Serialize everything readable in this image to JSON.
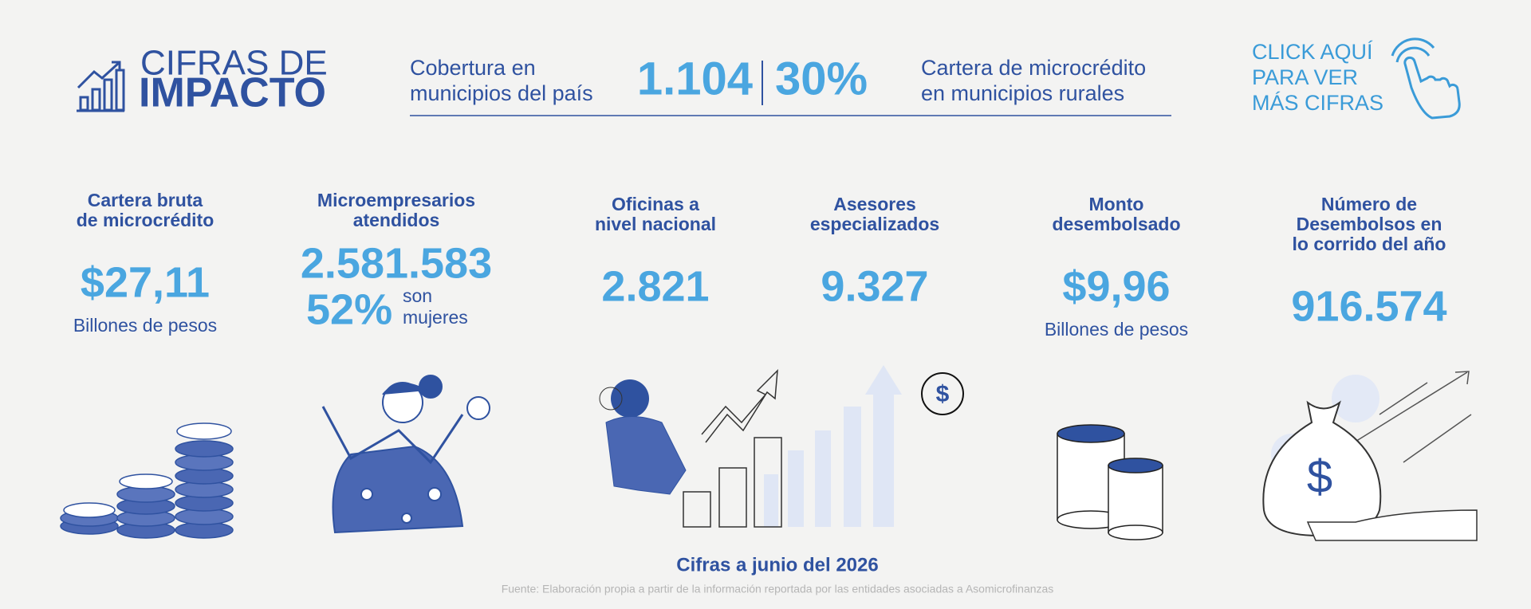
{
  "header": {
    "title_line1": "CIFRAS DE",
    "title_line2": "IMPACTO"
  },
  "highlights": [
    {
      "label_lines": [
        "Cobertura en",
        "municipios del país"
      ],
      "value": "1.104"
    },
    {
      "value": "30%",
      "label_lines": [
        "Cartera de microcrédito",
        "en municipios rurales"
      ]
    }
  ],
  "cta": {
    "lines": [
      "CLICK AQUÍ",
      "PARA VER",
      "MÁS CIFRAS"
    ]
  },
  "stats": [
    {
      "title_lines": [
        "Cartera bruta",
        "de microcrédito"
      ],
      "value": "$27,11",
      "unit": "Billones de pesos"
    },
    {
      "title_lines": [
        "Microempresarios",
        "atendidos"
      ],
      "value": "2.581.583",
      "share": "52%",
      "share_label_lines": [
        "son",
        "mujeres"
      ]
    },
    {
      "title_lines": [
        "Oficinas a",
        "nivel nacional"
      ],
      "value": "2.821"
    },
    {
      "title_lines": [
        "Asesores",
        "especializados"
      ],
      "value": "9.327"
    },
    {
      "title_lines": [
        "Monto",
        "desembolsado"
      ],
      "value": "$9,96",
      "unit": "Billones de pesos"
    },
    {
      "title_lines": [
        "Número de",
        "Desembolsos en",
        "lo corrido del año"
      ],
      "value": "916.574"
    }
  ],
  "footer": {
    "date": "Cifras a junio del 2026",
    "source": "Fuente: Elaboración propia a partir de la información reportada por las entidades asociadas a Asomicrofinanzas"
  }
}
